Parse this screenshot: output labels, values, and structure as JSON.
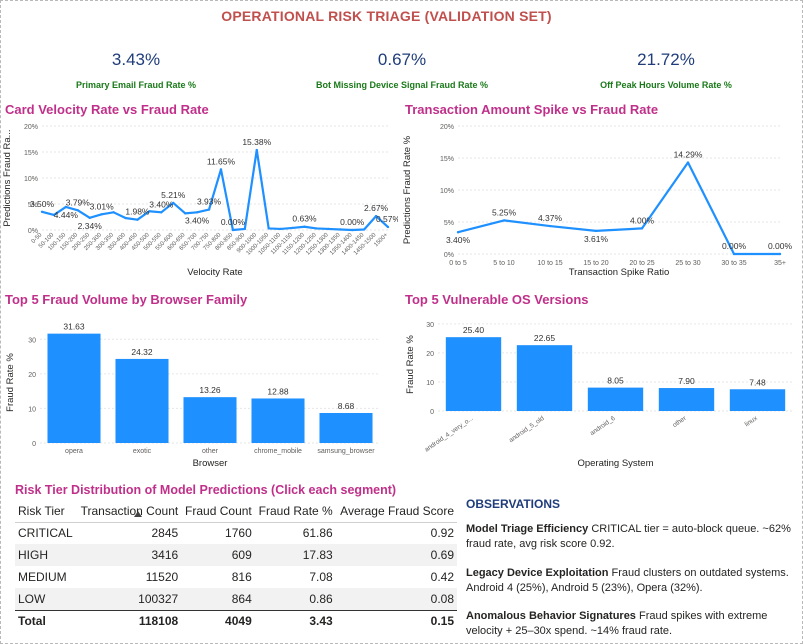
{
  "report": {
    "title": "OPERATIONAL RISK TRIAGE (VALIDATION SET)"
  },
  "kpis": [
    {
      "value": "3.43%",
      "label": "Primary Email Fraud Rate %"
    },
    {
      "value": "0.67%",
      "label": "Bot Missing Device Signal Fraud Rate %"
    },
    {
      "value": "21.72%",
      "label": "Off Peak Hours Volume Rate %"
    }
  ],
  "colors": {
    "accent": "#1e90ff",
    "title": "#c0504d",
    "chart_title": "#c0308a",
    "kpi_value": "#1f3d7a",
    "kpi_label": "#1a7a1a"
  },
  "chart_data": [
    {
      "id": "velocity",
      "type": "line",
      "title": "Card Velocity Rate vs Fraud Rate",
      "xlabel": "Velocity Rate",
      "ylabel": "Predictions Fraud Ra...",
      "ylim": [
        0,
        20
      ],
      "yticks": [
        "0%",
        "5%",
        "10%",
        "15%",
        "20%"
      ],
      "categories": [
        "0-50",
        "50-100",
        "100-150",
        "150-200",
        "200-250",
        "250-300",
        "300-350",
        "350-400",
        "400-450",
        "450-500",
        "500-550",
        "550-600",
        "600-650",
        "650-700",
        "700-750",
        "750-800",
        "800-850",
        "850-900",
        "900-1000",
        "1000-1050",
        "1050-1100",
        "1100-1150",
        "1150-1200",
        "1200-1250",
        "1250-1300",
        "1300-1350",
        "1350-1400",
        "1400-1450",
        "1450-1500",
        "1500+"
      ],
      "values": [
        3.5,
        2.9,
        4.44,
        3.79,
        2.34,
        3.01,
        3.4,
        2.3,
        1.98,
        3.6,
        3.4,
        5.21,
        3.2,
        3.4,
        3.93,
        11.65,
        0.0,
        0.2,
        15.38,
        0.3,
        0.2,
        0.4,
        0.63,
        0.3,
        0.2,
        0.1,
        0.0,
        0.1,
        2.67,
        0.57
      ],
      "labels": {
        "0": "3.50%",
        "2": "4.44%",
        "3": "3.79%",
        "4": "2.34%",
        "5": "3.01%",
        "8": "1.98%",
        "10": "3.40%",
        "11": "5.21%",
        "13": "3.40%",
        "14": "3.93%",
        "15": "11.65%",
        "16": "0.00%",
        "18": "15.38%",
        "22": "0.63%",
        "26": "0.00%",
        "28": "2.67%",
        "29": "0.57%"
      }
    },
    {
      "id": "spike",
      "type": "line",
      "title": "Transaction Amount Spike vs Fraud Rate",
      "xlabel": "Transaction Spike Ratio",
      "ylabel": "Predictions Fraud Rate %",
      "ylim": [
        0,
        20
      ],
      "yticks": [
        "0%",
        "5%",
        "10%",
        "15%",
        "20%"
      ],
      "categories": [
        "0 to 5",
        "5 to 10",
        "10 to 15",
        "15 to 20",
        "20 to 25",
        "25 to 30",
        "30 to 35",
        "35+"
      ],
      "values": [
        3.4,
        5.25,
        4.37,
        3.61,
        4.0,
        14.29,
        0.0,
        0.0
      ],
      "labels": [
        "3.40%",
        "5.25%",
        "4.37%",
        "3.61%",
        "4.00%",
        "14.29%",
        "0.00%",
        "0.00%"
      ]
    },
    {
      "id": "browser",
      "type": "bar",
      "title": "Top 5 Fraud Volume by Browser Family",
      "xlabel": "Browser",
      "ylabel": "Fraud Rate %",
      "ylim": [
        0,
        35
      ],
      "yticks": [
        "0",
        "10",
        "20",
        "30"
      ],
      "categories": [
        "opera",
        "exotic",
        "other",
        "chrome_mobile",
        "samsung_browser"
      ],
      "values": [
        31.63,
        24.32,
        13.26,
        12.88,
        8.68
      ],
      "labels": [
        "31.63",
        "24.32",
        "13.26",
        "12.88",
        "8.68"
      ]
    },
    {
      "id": "os",
      "type": "bar",
      "title": "Top 5 Vulnerable OS Versions",
      "xlabel": "Operating System",
      "ylabel": "Fraud Rate %",
      "ylim": [
        0,
        32
      ],
      "yticks": [
        "0",
        "10",
        "20",
        "30"
      ],
      "categories": [
        "android_4_very_o...",
        "android_5_old",
        "android_6",
        "other",
        "linux"
      ],
      "values": [
        25.4,
        22.65,
        8.05,
        7.9,
        7.48
      ],
      "labels": [
        "25.40",
        "22.65",
        "8.05",
        "7.90",
        "7.48"
      ]
    }
  ],
  "table": {
    "title": "Risk Tier Distribution of Model Predictions (Click each segment)",
    "headers": [
      "Risk Tier",
      "Transaction Count",
      "Fraud Count",
      "Fraud Rate %",
      "Average Fraud Score"
    ],
    "rows": [
      [
        "CRITICAL",
        "2845",
        "1760",
        "61.86",
        "0.92"
      ],
      [
        "HIGH",
        "3416",
        "609",
        "17.83",
        "0.69"
      ],
      [
        "MEDIUM",
        "11520",
        "816",
        "7.08",
        "0.42"
      ],
      [
        "LOW",
        "100327",
        "864",
        "0.86",
        "0.08"
      ]
    ],
    "total": [
      "Total",
      "118108",
      "4049",
      "3.43",
      "0.15"
    ]
  },
  "observations": {
    "title": "OBSERVATIONS",
    "items": [
      {
        "heading": "Model Triage Efficiency",
        "text": "CRITICAL tier = auto-block queue. ~62% fraud rate, avg risk score 0.92."
      },
      {
        "heading": "Legacy Device Exploitation",
        "text": "Fraud clusters on outdated systems. Android 4 (25%), Android 5 (23%), Opera (32%)."
      },
      {
        "heading": "Anomalous Behavior Signatures",
        "text": "Fraud spikes with extreme velocity + 25–30x spend. ~14% fraud rate."
      }
    ]
  }
}
